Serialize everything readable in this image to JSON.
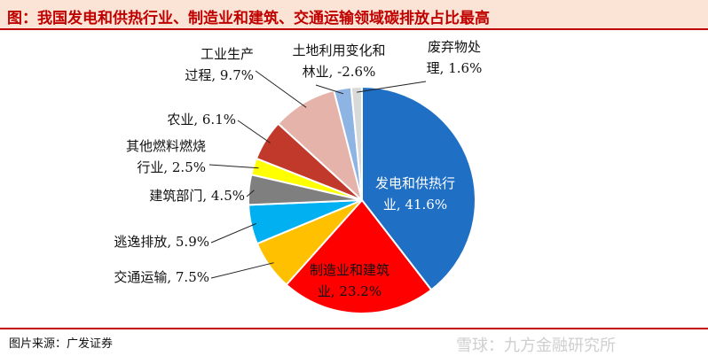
{
  "title": "图：我国发电和供热行业、制造业和建筑、交通运输领域碳排放占比最高",
  "footer": {
    "source": "图片来源：广发证券",
    "watermark": "雪球：九方金融研究所"
  },
  "colors": {
    "accent": "#c00000",
    "title_bg": "#fbe4d5"
  },
  "chart_data": {
    "type": "pie",
    "slices": [
      {
        "name": "发电和供热行业",
        "value": 41.6,
        "label_lines": [
          "发电和供热行",
          "业, 41.6%"
        ],
        "color": "#1f6fc5",
        "label_color": "#ffffff"
      },
      {
        "name": "制造业和建筑业",
        "value": 23.2,
        "label_lines": [
          "制造业和建筑",
          "业, 23.2%"
        ],
        "color": "#ff0000",
        "label_color": "#111111"
      },
      {
        "name": "交通运输",
        "value": 7.5,
        "label_lines": [
          "交通运输, 7.5%"
        ],
        "color": "#ffc000",
        "label_color": "#111111"
      },
      {
        "name": "逃逸排放",
        "value": 5.9,
        "label_lines": [
          "逃逸排放, 5.9%"
        ],
        "color": "#00b0f0",
        "label_color": "#111111"
      },
      {
        "name": "建筑部门",
        "value": 4.5,
        "label_lines": [
          "建筑部门, 4.5%"
        ],
        "color": "#7f7f7f",
        "label_color": "#111111"
      },
      {
        "name": "其他燃料燃烧行业",
        "value": 2.5,
        "label_lines": [
          "其他燃料燃烧",
          "行业, 2.5%"
        ],
        "color": "#ffff00",
        "label_color": "#111111"
      },
      {
        "name": "农业",
        "value": 6.1,
        "label_lines": [
          "农业, 6.1%"
        ],
        "color": "#c0392b",
        "label_color": "#111111"
      },
      {
        "name": "工业生产过程",
        "value": 9.7,
        "label_lines": [
          "工业生产",
          "过程, 9.7%"
        ],
        "color": "#e6b3aa",
        "label_color": "#111111"
      },
      {
        "name": "土地利用变化和林业",
        "value": -2.6,
        "label_lines": [
          "土地利用变化和",
          "林业, -2.6%"
        ],
        "color": "#8eb4e3",
        "label_color": "#111111"
      },
      {
        "name": "废弃物处理",
        "value": 1.6,
        "label_lines": [
          "废弃物处",
          "理, 1.6%"
        ],
        "color": "#d9d9d9",
        "label_color": "#111111"
      }
    ]
  }
}
